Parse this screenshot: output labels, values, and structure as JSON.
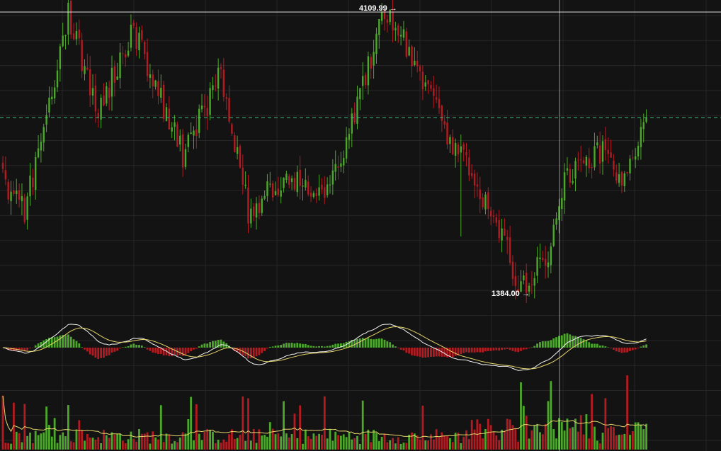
{
  "colors": {
    "background": "#131314",
    "grid": "#262628",
    "up": "#4ca82a",
    "down": "#b11c22",
    "crosshair": "#ffffff",
    "last_price_line": "#3fbf7f",
    "macd_line": "#f3f3f3",
    "signal_line": "#e6d66a",
    "volume_ma": "#e6d66a"
  },
  "annotations": {
    "high_label": "4109.99",
    "low_label": "1384.00",
    "arrow": "→"
  },
  "chart_data": {
    "type": "candlestick",
    "title": "",
    "xlabel": "",
    "ylabel": "",
    "price_high": 4109.99,
    "price_low": 1384.0,
    "approx_last_close": 3070,
    "grid": true,
    "panels": [
      "price",
      "macd",
      "volume"
    ],
    "key_points": [
      {
        "bar": 0,
        "price": 2450
      },
      {
        "bar": 8,
        "price": 2150
      },
      {
        "bar": 24,
        "price": 4080
      },
      {
        "bar": 35,
        "price": 3150
      },
      {
        "bar": 48,
        "price": 3940
      },
      {
        "bar": 66,
        "price": 2700
      },
      {
        "bar": 80,
        "price": 3500
      },
      {
        "bar": 90,
        "price": 2150
      },
      {
        "bar": 105,
        "price": 2500
      },
      {
        "bar": 118,
        "price": 2300
      },
      {
        "bar": 128,
        "price": 3000
      },
      {
        "bar": 140,
        "price": 4109.99
      },
      {
        "bar": 152,
        "price": 3600
      },
      {
        "bar": 162,
        "price": 2950
      },
      {
        "bar": 172,
        "price": 2550
      },
      {
        "bar": 182,
        "price": 1950
      },
      {
        "bar": 190,
        "price": 1384.0
      },
      {
        "bar": 200,
        "price": 1700
      },
      {
        "bar": 206,
        "price": 2500
      },
      {
        "bar": 220,
        "price": 2750
      },
      {
        "bar": 228,
        "price": 2400
      },
      {
        "bar": 236,
        "price": 3070
      }
    ]
  }
}
